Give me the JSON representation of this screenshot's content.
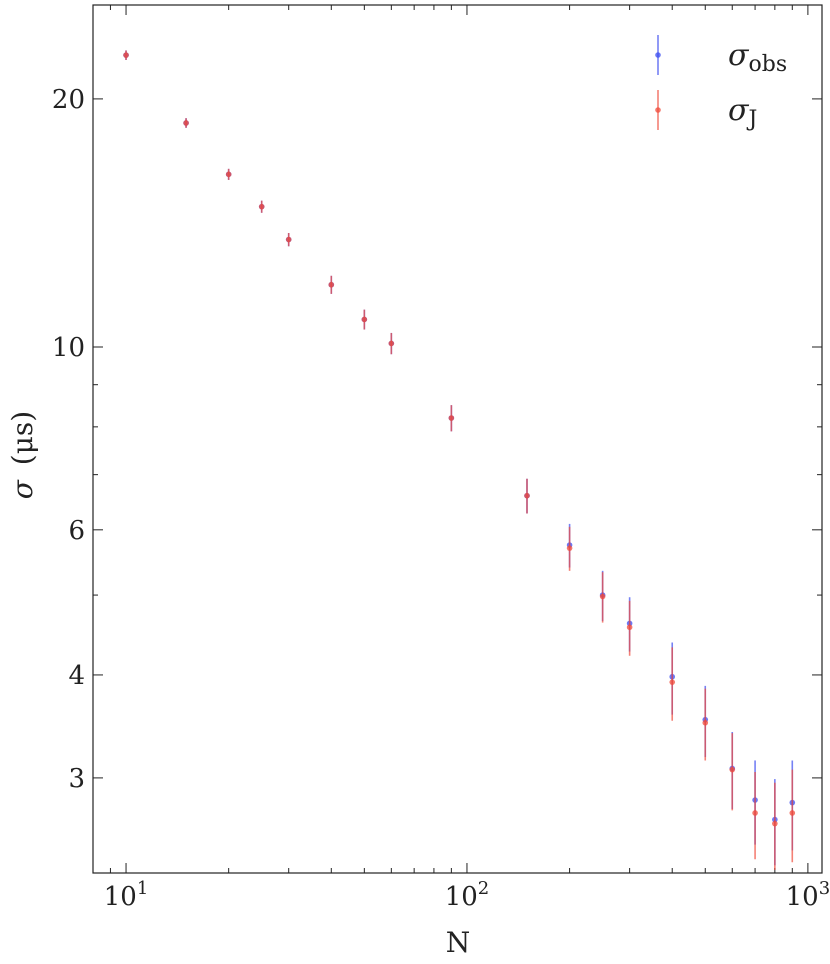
{
  "chart_data": {
    "type": "scatter",
    "xscale": "log",
    "yscale": "log",
    "xlabel": "N",
    "ylabel_symbol": "σ",
    "ylabel_unit": "(μs)",
    "xlim": [
      8,
      1100
    ],
    "ylim": [
      2.3,
      26
    ],
    "xticks": [
      {
        "value": 10,
        "base": "10",
        "exp": "1"
      },
      {
        "value": 100,
        "base": "10",
        "exp": "2"
      },
      {
        "value": 1000,
        "base": "10",
        "exp": "3"
      }
    ],
    "yticks": [
      3,
      4,
      6,
      10,
      20
    ],
    "grid": false,
    "legend_position": "top-right",
    "series": [
      {
        "name": "σ_obs",
        "name_symbol": "σ",
        "name_sub": "obs",
        "color": "#3b4cf0",
        "x": [
          10,
          15,
          20,
          25,
          30,
          40,
          50,
          60,
          90,
          150,
          200,
          250,
          300,
          400,
          500,
          600,
          700,
          800,
          900
        ],
        "y": [
          22.6,
          18.7,
          16.2,
          14.8,
          13.5,
          11.9,
          10.8,
          10.1,
          8.2,
          6.6,
          5.75,
          5.0,
          4.62,
          3.98,
          3.53,
          3.08,
          2.82,
          2.67,
          2.8
        ],
        "err": [
          0.3,
          0.25,
          0.25,
          0.25,
          0.25,
          0.3,
          0.3,
          0.3,
          0.3,
          0.32,
          0.35,
          0.35,
          0.35,
          0.4,
          0.35,
          0.33,
          0.33,
          0.32,
          0.35
        ]
      },
      {
        "name": "σ_J",
        "name_symbol": "σ",
        "name_sub": "J",
        "color": "#f04a3a",
        "x": [
          10,
          15,
          20,
          25,
          30,
          40,
          50,
          60,
          90,
          150,
          200,
          250,
          300,
          400,
          500,
          600,
          700,
          800,
          900
        ],
        "y": [
          22.6,
          18.7,
          16.2,
          14.8,
          13.5,
          11.9,
          10.8,
          10.1,
          8.2,
          6.6,
          5.7,
          4.98,
          4.57,
          3.92,
          3.5,
          3.07,
          2.72,
          2.64,
          2.72
        ],
        "err": [
          0.3,
          0.25,
          0.25,
          0.25,
          0.25,
          0.3,
          0.3,
          0.3,
          0.3,
          0.32,
          0.35,
          0.35,
          0.35,
          0.4,
          0.35,
          0.33,
          0.33,
          0.32,
          0.35
        ]
      }
    ]
  }
}
